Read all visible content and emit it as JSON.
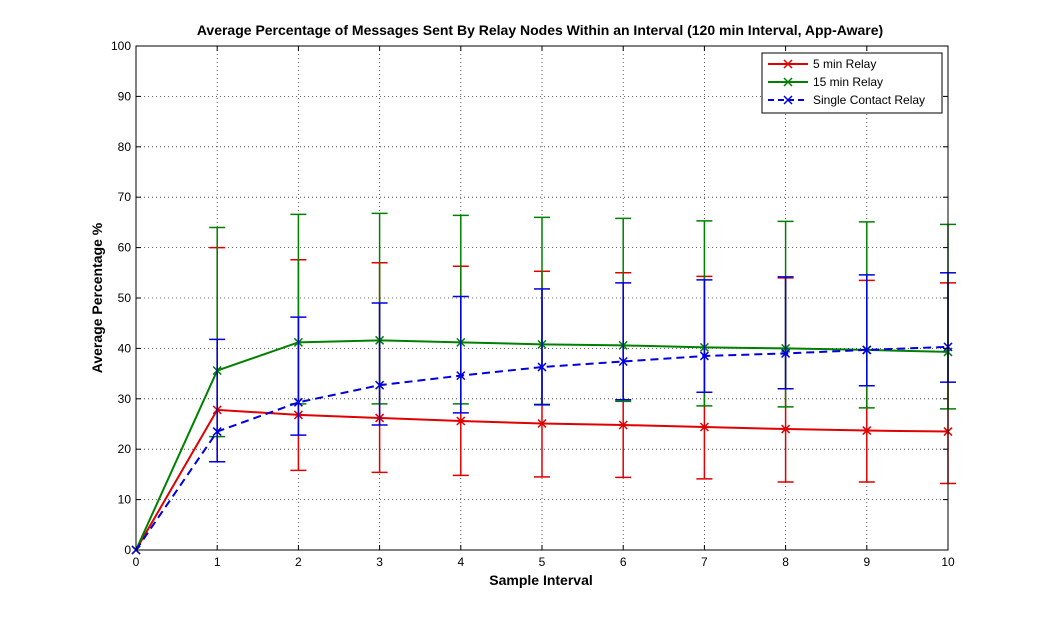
{
  "chart_data": {
    "type": "line",
    "title": "Average Percentage of Messages Sent By Relay Nodes Within an Interval (120 min Interval, App-Aware)",
    "xlabel": "Sample Interval",
    "ylabel": "Average Percentage %",
    "xlim": [
      0,
      10
    ],
    "ylim": [
      0,
      100
    ],
    "xticks": [
      0,
      1,
      2,
      3,
      4,
      5,
      6,
      7,
      8,
      9,
      10
    ],
    "yticks": [
      0,
      10,
      20,
      30,
      40,
      50,
      60,
      70,
      80,
      90,
      100
    ],
    "grid": true,
    "legend_position": "top-right",
    "x": [
      0,
      1,
      2,
      3,
      4,
      5,
      6,
      7,
      8,
      9,
      10
    ],
    "series": [
      {
        "name": "5 min Relay",
        "color": "#e00000",
        "line_style": "solid",
        "marker": "x",
        "values": [
          0,
          27.8,
          26.8,
          26.2,
          25.6,
          25.1,
          24.8,
          24.4,
          24.0,
          23.7,
          23.5
        ],
        "error_low": [
          0,
          17.5,
          15.8,
          15.4,
          14.8,
          14.5,
          14.4,
          14.1,
          13.5,
          13.5,
          13.2
        ],
        "error_high": [
          0,
          60.0,
          57.6,
          57.0,
          56.3,
          55.3,
          55.0,
          54.3,
          54.0,
          53.5,
          53.0
        ]
      },
      {
        "name": "15 min Relay",
        "color": "#008000",
        "line_style": "solid",
        "marker": "x",
        "values": [
          0,
          35.6,
          41.2,
          41.6,
          41.2,
          40.8,
          40.6,
          40.2,
          40.0,
          39.7,
          39.3
        ],
        "error_low": [
          0,
          22.5,
          29.0,
          29.0,
          29.0,
          28.9,
          29.5,
          28.6,
          28.4,
          28.2,
          28.0
        ],
        "error_high": [
          0,
          64.0,
          66.6,
          66.8,
          66.4,
          66.0,
          65.8,
          65.3,
          65.2,
          65.1,
          64.6
        ]
      },
      {
        "name": "Single Contact Relay",
        "color": "#0000e0",
        "line_style": "dashed",
        "marker": "x",
        "values": [
          0,
          23.5,
          29.3,
          32.7,
          34.6,
          36.3,
          37.4,
          38.5,
          39.0,
          39.7,
          40.3
        ],
        "error_low": [
          0,
          17.5,
          22.8,
          24.8,
          27.2,
          28.8,
          29.8,
          31.3,
          32.0,
          32.6,
          33.3
        ],
        "error_high": [
          0,
          41.8,
          46.2,
          49.0,
          50.3,
          51.8,
          53.0,
          53.6,
          54.2,
          54.6,
          55.0
        ]
      }
    ]
  }
}
